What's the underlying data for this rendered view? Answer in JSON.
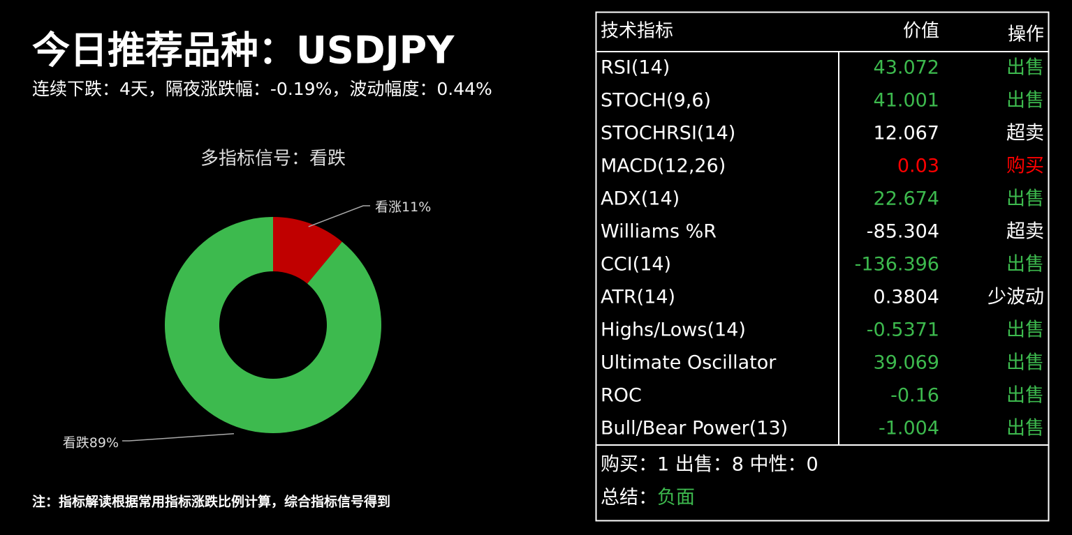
{
  "header": {
    "title": "今日推荐品种：USDJPY",
    "subtitle": "连续下跌：4天，隔夜涨跌幅：-0.19%，波动幅度：0.44%"
  },
  "chart_data": {
    "type": "pie",
    "title": "多指标信号：看跌",
    "donut": true,
    "categories": [
      "看涨",
      "看跌"
    ],
    "values": [
      11,
      89
    ],
    "value_labels": [
      "11%",
      "89%"
    ],
    "colors": [
      "#c00000",
      "#3dba4e"
    ]
  },
  "note": "注：指标解读根据常用指标涨跌比例计算，综合指标信号得到",
  "table": {
    "headers": [
      "技术指标",
      "价值",
      "操作"
    ],
    "rows": [
      [
        "RSI(14)",
        "43.072",
        "出售",
        "#3dba4e"
      ],
      [
        "STOCH(9,6)",
        "41.001",
        "出售",
        "#3dba4e"
      ],
      [
        "STOCHRSI(14)",
        "12.067",
        "超卖",
        "#ffffff"
      ],
      [
        "MACD(12,26)",
        "0.03",
        "购买",
        "#ff0000"
      ],
      [
        "ADX(14)",
        "22.674",
        "出售",
        "#3dba4e"
      ],
      [
        "Williams %R",
        "-85.304",
        "超卖",
        "#ffffff"
      ],
      [
        "CCI(14)",
        "-136.396",
        "出售",
        "#3dba4e"
      ],
      [
        "ATR(14)",
        "0.3804",
        "少波动",
        "#ffffff"
      ],
      [
        "Highs/Lows(14)",
        "-0.5371",
        "出售",
        "#3dba4e"
      ],
      [
        "Ultimate Oscillator",
        "39.069",
        "出售",
        "#3dba4e"
      ],
      [
        "ROC",
        "-0.16",
        "出售",
        "#3dba4e"
      ],
      [
        "Bull/Bear Power(13)",
        "-1.004",
        "出售",
        "#3dba4e"
      ]
    ],
    "counts": "购买：1 出售：8 中性：0",
    "summary_label": "总结：",
    "summary_value": "负面",
    "summary_color": "#3dba4e"
  }
}
